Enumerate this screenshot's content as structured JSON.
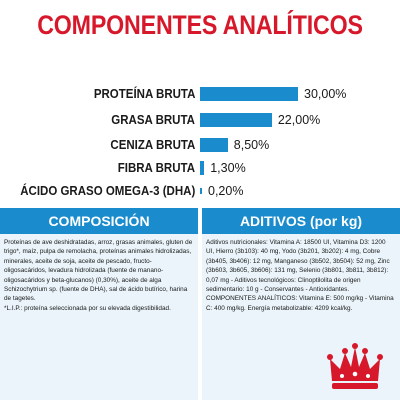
{
  "title": "COMPONENTES ANALÍTICOS",
  "chart_data": {
    "type": "bar",
    "categories": [
      "PROTEÍNA BRUTA",
      "GRASA BRUTA",
      "CENIZA BRUTA",
      "FIBRA BRUTA",
      "ÁCIDO GRASO OMEGA-3 (DHA)"
    ],
    "values": [
      30.0,
      22.0,
      8.5,
      1.3,
      0.2
    ],
    "value_labels": [
      "30,00%",
      "22,00%",
      "8,50%",
      "1,30%",
      "0,20%"
    ],
    "bar_color": "#1a8ccd"
  },
  "composicion": {
    "header": "COMPOSICIÓN",
    "text": "Proteínas de ave deshidratadas, arroz, grasas animales, gluten de trigo*, maíz, pulpa de remolacha, proteínas animales hidrolizadas, minerales, aceite de soja, aceite de pescado, fructo-oligosacáridos, levadura hidrolizada (fuente de manano-oligosacáridos y beta-glucanos) (0,30%), aceite de alga Schizochytrium sp. (fuente de DHA), sal de ácido butírico, harina de tagetes.",
    "note": "*L.I.P.: proteína seleccionada por su elevada digestibilidad."
  },
  "aditivos": {
    "header": "ADITIVOS (por kg)",
    "text": "Aditivos nutricionales: Vitamina A: 18500 UI, Vitamina D3: 1200 UI, Hierro (3b103): 40 mg, Yodo (3b201, 3b202): 4 mg, Cobre (3b405, 3b406): 12 mg, Manganeso (3b502, 3b504): 52 mg, Zinc (3b603, 3b605, 3b606): 131 mg, Selenio (3b801, 3b811, 3b812): 0,07 mg - Aditivos tecnológicos: Clinoptilolita de origen sedimentario: 10 g - Conservantes - Antioxidantes. COMPONENTES ANALÍTICOS: Vitamina E: 500 mg/kg - Vitamina C: 400 mg/kg. Energía metabolizable: 4209 kcal/kg."
  },
  "colors": {
    "title": "#d7182a",
    "accent": "#1a8ccd",
    "panel_bg": "#eaf4fa",
    "logo": "#d7182a"
  },
  "logo": {
    "icon": "royal-canin-crown-logo"
  }
}
